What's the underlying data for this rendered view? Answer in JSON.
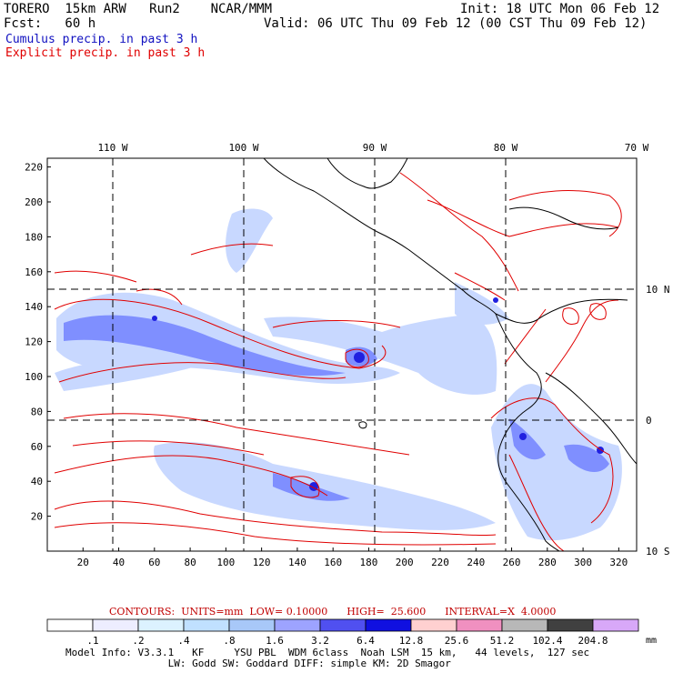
{
  "header": {
    "line1_left": "TORERO  15km ARW   Run2    NCAR/MMM",
    "line1_right": "Init: 18 UTC Mon 06 Feb 12",
    "line2_left": "Fcst:   60 h",
    "line2_right": "Valid: 06 UTC Thu 09 Feb 12 (00 CST Thu 09 Feb 12)",
    "cumulus_label": "Cumulus precip. in past 3 h",
    "explicit_label": "Explicit precip. in past 3 h"
  },
  "colors": {
    "cumulus": "#0000cc",
    "explicit": "#e00000",
    "precip_light": "#c8d8ff",
    "precip_mid": "#7f8fff",
    "precip_heavy": "#2020e0",
    "coast": "#000000"
  },
  "contour_info": "CONTOURS:  UNITS=mm  LOW= 0.10000      HIGH=  25.600      INTERVAL=X  4.0000",
  "footer": {
    "line1": "Model Info: V3.3.1   KF     YSU PBL  WDM 6class  Noah LSM  15 km,   44 levels,  127 sec",
    "line2": "                 LW: Godd SW: Goddard DIFF: simple KM: 2D Smagor"
  },
  "chart_data": {
    "type": "heatmap",
    "xlim": [
      0,
      330
    ],
    "ylim": [
      0,
      225
    ],
    "x_ticks": [
      "20",
      "40",
      "60",
      "80",
      "100",
      "120",
      "140",
      "160",
      "180",
      "200",
      "220",
      "240",
      "260",
      "280",
      "300",
      "320"
    ],
    "y_ticks": [
      "20",
      "40",
      "60",
      "80",
      "100",
      "120",
      "140",
      "160",
      "180",
      "200",
      "220"
    ],
    "lon_labels": [
      "110 W",
      "100 W",
      "90 W",
      "80 W",
      "70 W"
    ],
    "lat_labels": [
      "10 N",
      "0",
      "10 S"
    ],
    "grid": true,
    "colorbar": {
      "levels": [
        ".1",
        ".2",
        ".4",
        ".8",
        "1.6",
        "3.2",
        "6.4",
        "12.8",
        "25.6",
        "51.2",
        "102.4",
        "204.8"
      ],
      "colors": [
        "#ffffff",
        "#ededff",
        "#dcf2ff",
        "#c0e0ff",
        "#a8c8f8",
        "#9da3ff",
        "#5050f0",
        "#1010e0",
        "#ffd0d0",
        "#f090c0",
        "#b8b8b8",
        "#404040",
        "#d8a8f8"
      ],
      "units": "mm"
    }
  }
}
